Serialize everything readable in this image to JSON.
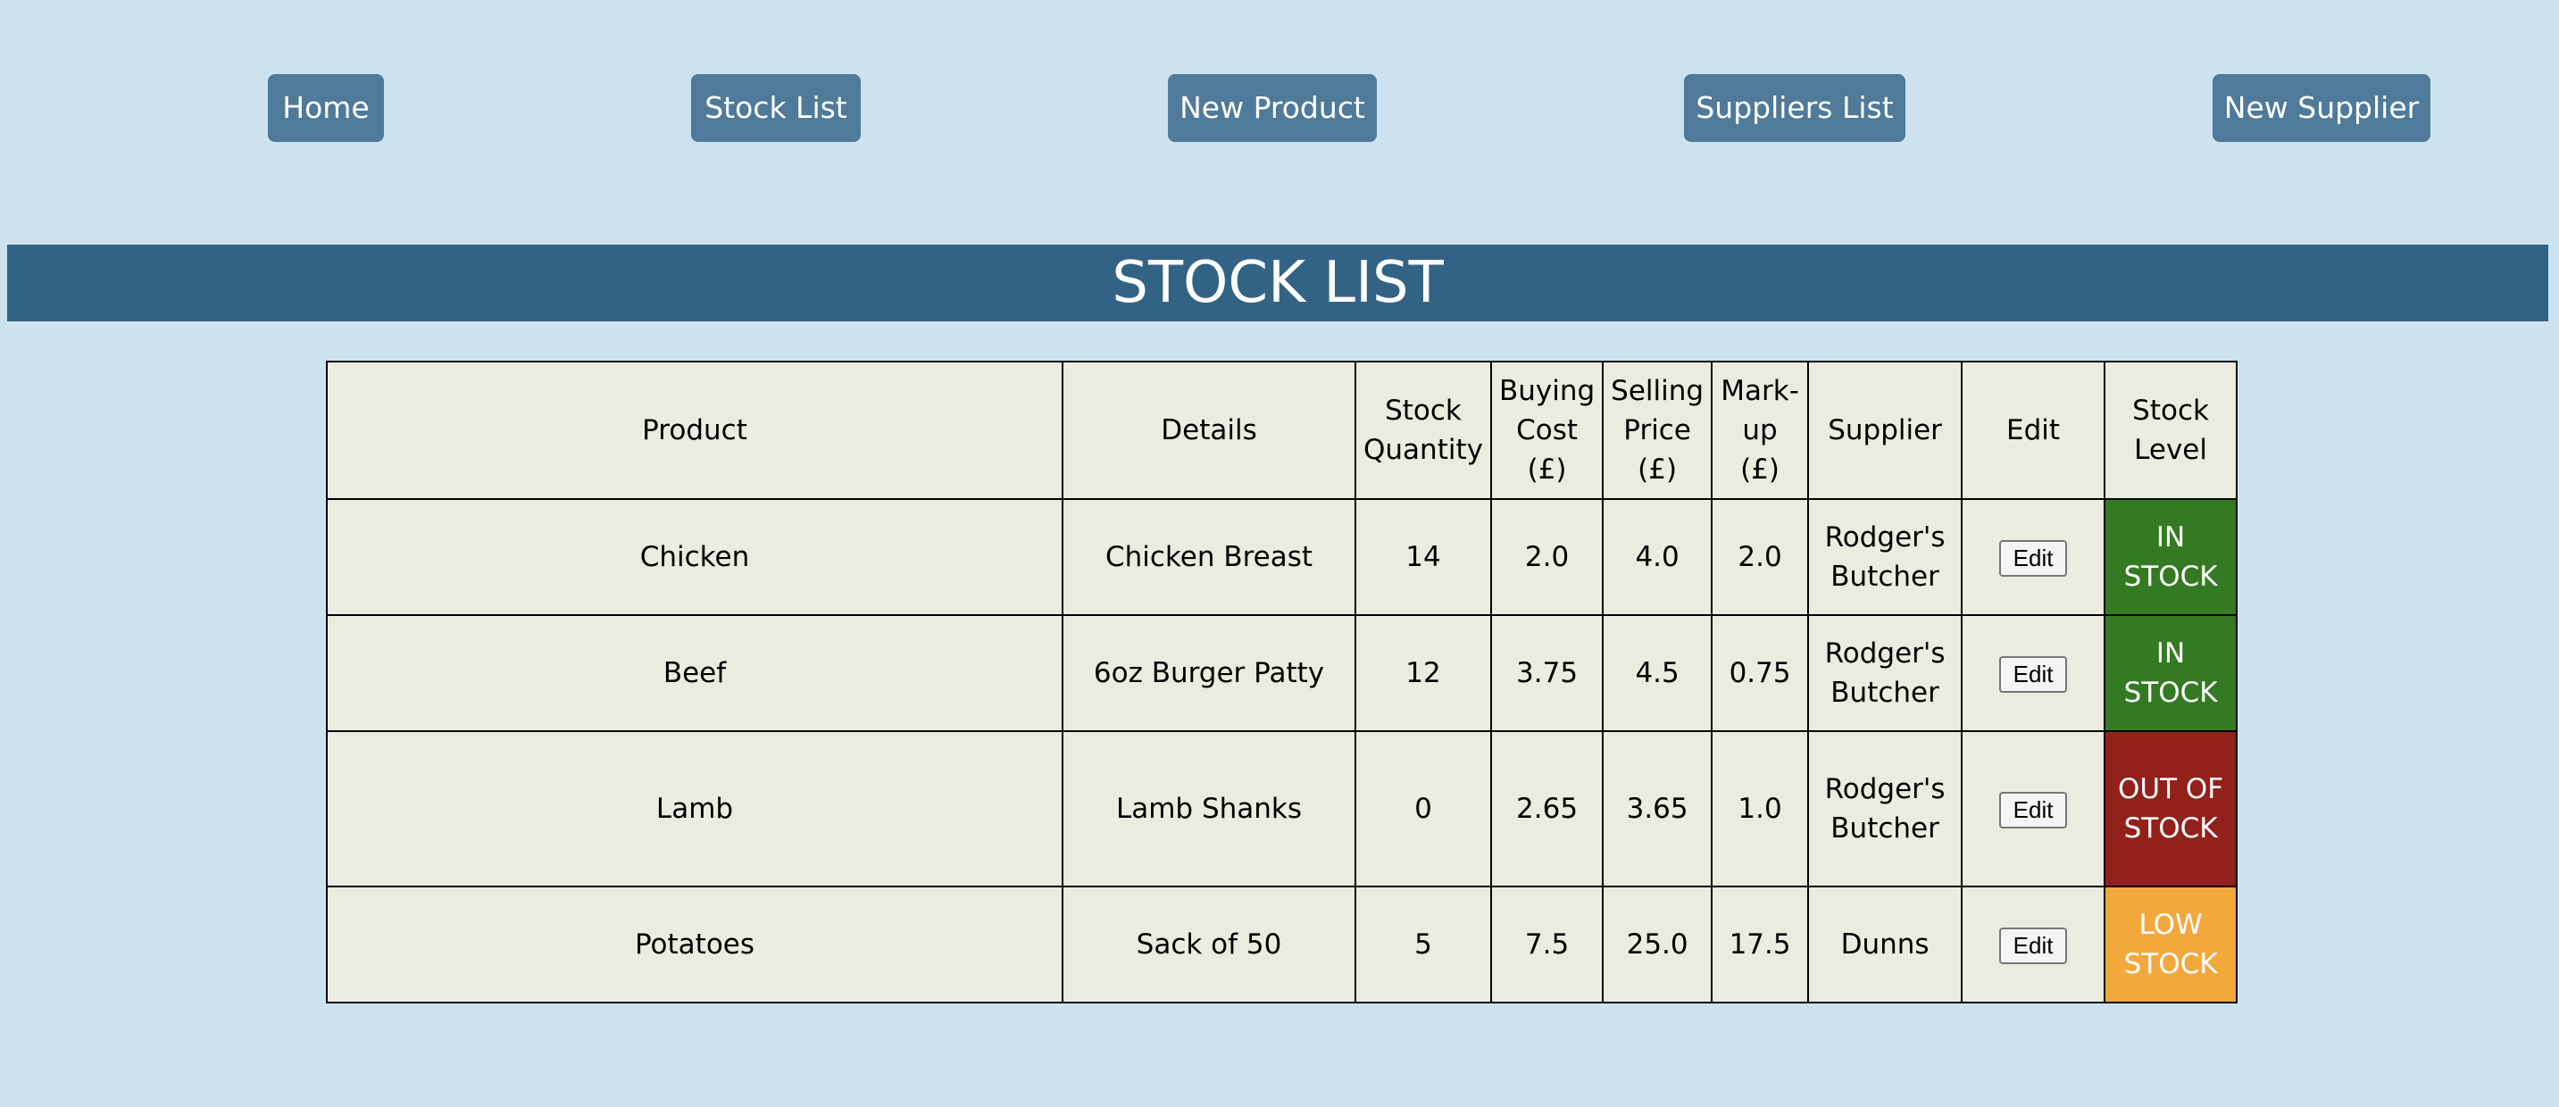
{
  "nav": {
    "items": [
      {
        "label": "Home"
      },
      {
        "label": "Stock List"
      },
      {
        "label": "New Product"
      },
      {
        "label": "Suppliers List"
      },
      {
        "label": "New Supplier"
      }
    ]
  },
  "page": {
    "title": "STOCK LIST"
  },
  "table": {
    "headers": {
      "product": "Product",
      "details": "Details",
      "stock_quantity": "Stock Quantity",
      "buying_cost": "Buying Cost (£)",
      "selling_price": "Selling Price (£)",
      "markup": "Mark-up (£)",
      "supplier": "Supplier",
      "edit": "Edit",
      "stock_level": "Stock Level"
    },
    "rows": [
      {
        "product": "Chicken",
        "details": "Chicken Breast",
        "stock_quantity": "14",
        "buying_cost": "2.0",
        "selling_price": "4.0",
        "markup": "2.0",
        "supplier": "Rodger's Butcher",
        "edit_label": "Edit",
        "stock_level": "IN STOCK",
        "stock_level_color": "#347a22"
      },
      {
        "product": "Beef",
        "details": "6oz Burger Patty",
        "stock_quantity": "12",
        "buying_cost": "3.75",
        "selling_price": "4.5",
        "markup": "0.75",
        "supplier": "Rodger's Butcher",
        "edit_label": "Edit",
        "stock_level": "IN STOCK",
        "stock_level_color": "#347a22"
      },
      {
        "product": "Lamb",
        "details": "Lamb Shanks",
        "stock_quantity": "0",
        "buying_cost": "2.65",
        "selling_price": "3.65",
        "markup": "1.0",
        "supplier": "Rodger's Butcher",
        "edit_label": "Edit",
        "stock_level": "OUT OF STOCK",
        "stock_level_color": "#92211b"
      },
      {
        "product": "Potatoes",
        "details": "Sack of 50",
        "stock_quantity": "5",
        "buying_cost": "7.5",
        "selling_price": "25.0",
        "markup": "17.5",
        "supplier": "Dunns",
        "edit_label": "Edit",
        "stock_level": "LOW STOCK",
        "stock_level_color": "#f3a83c"
      }
    ]
  },
  "colors": {
    "background": "#cce3ef",
    "nav_button": "#4f7a9a",
    "title_bar": "#336384",
    "table_background": "#ecebdf"
  }
}
